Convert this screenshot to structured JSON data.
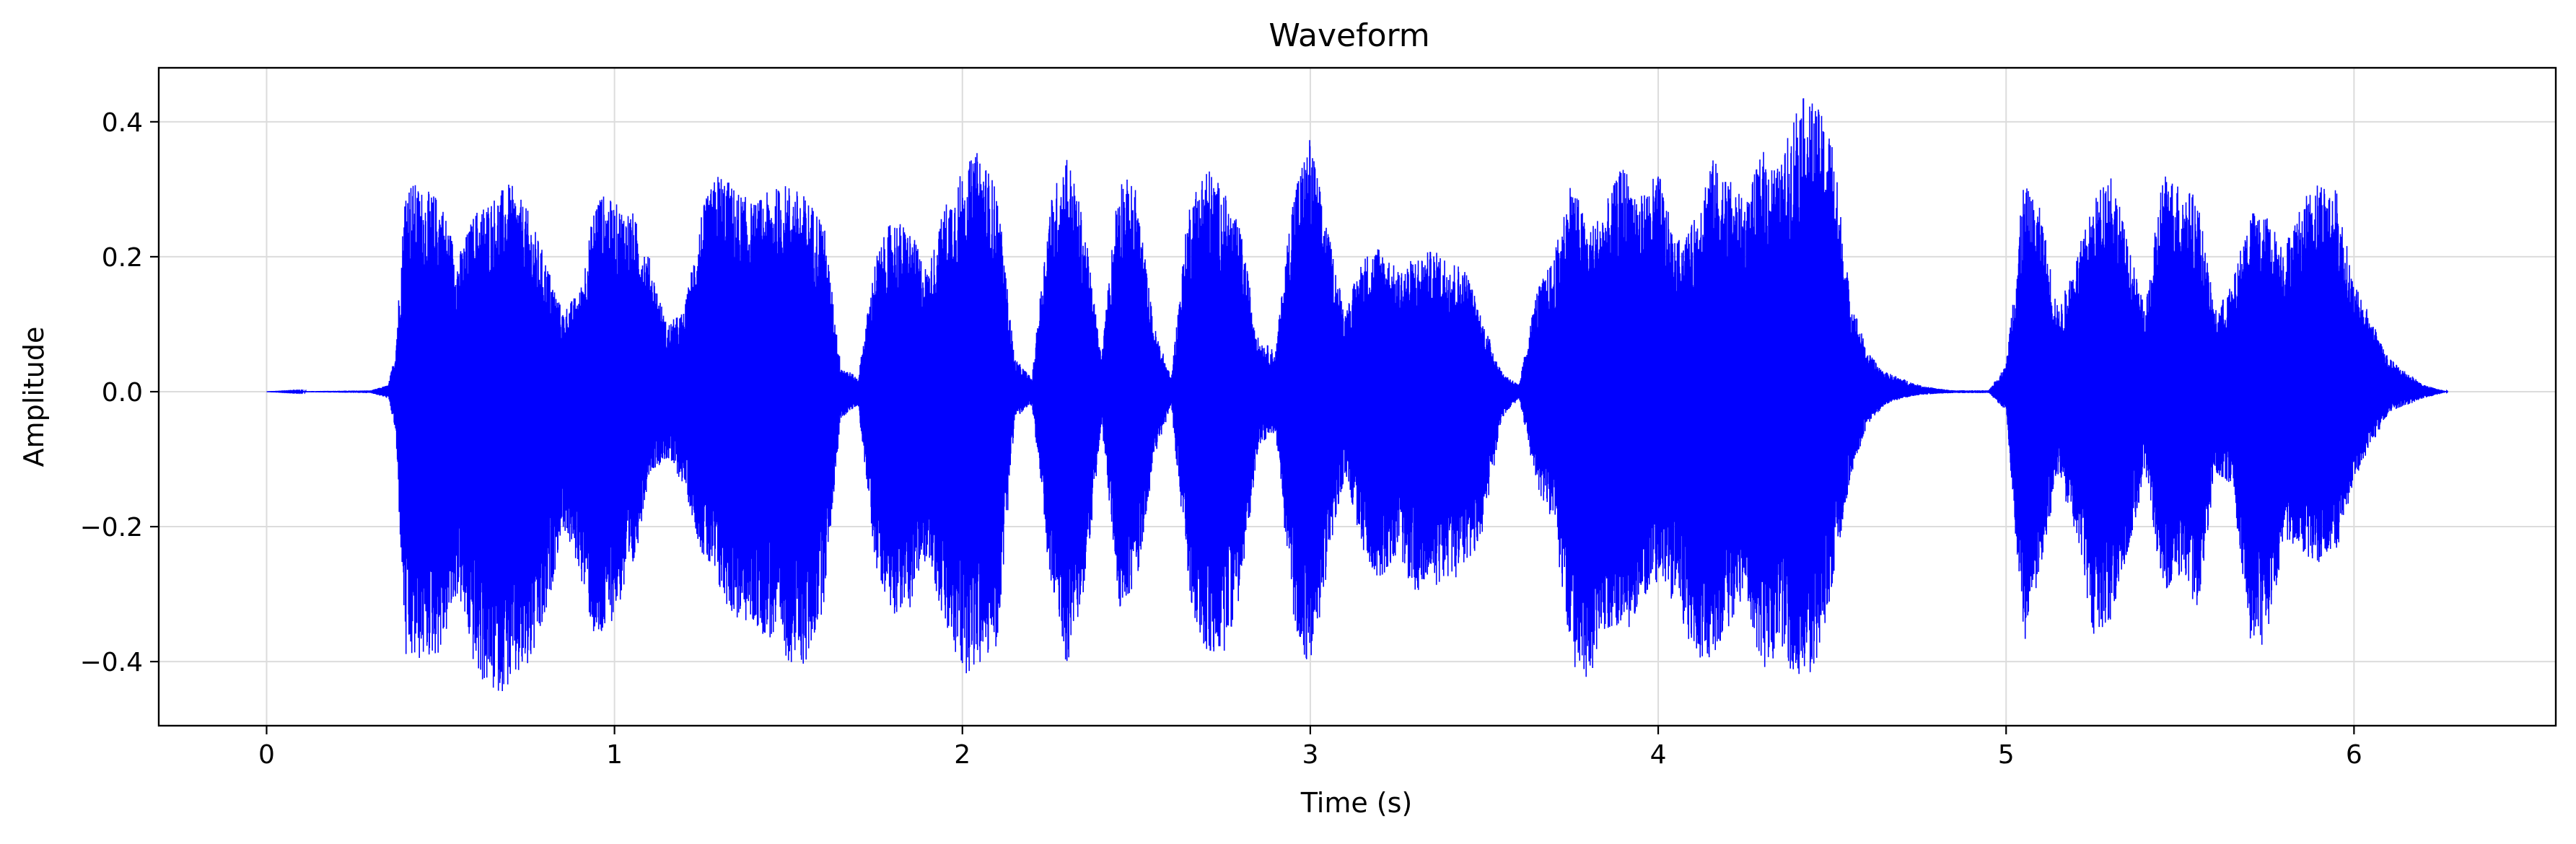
{
  "chart_data": {
    "type": "line",
    "title": "Waveform",
    "xlabel": "Time (s)",
    "ylabel": "Amplitude",
    "xlim": [
      -0.31,
      6.58
    ],
    "ylim": [
      -0.495,
      0.48
    ],
    "xticks": [
      0,
      1,
      2,
      3,
      4,
      5,
      6
    ],
    "xtick_labels": [
      "0",
      "1",
      "2",
      "3",
      "4",
      "5",
      "6"
    ],
    "yticks": [
      -0.4,
      -0.2,
      0.0,
      0.2,
      0.4
    ],
    "ytick_labels": [
      "−0.4",
      "−0.2",
      "0.0",
      "0.2",
      "0.4"
    ],
    "grid": true,
    "legend": "none",
    "duration_s": 6.27,
    "series": [
      {
        "color": "#0000ff",
        "envelope": {
          "t": [
            0.0,
            0.3,
            0.35,
            0.37,
            0.4,
            0.45,
            0.5,
            0.55,
            0.6,
            0.65,
            0.7,
            0.75,
            0.8,
            0.85,
            0.9,
            0.95,
            1.0,
            1.05,
            1.1,
            1.15,
            1.2,
            1.25,
            1.3,
            1.35,
            1.4,
            1.45,
            1.5,
            1.55,
            1.6,
            1.65,
            1.7,
            1.75,
            1.8,
            1.85,
            1.9,
            1.95,
            2.0,
            2.05,
            2.1,
            2.15,
            2.2,
            2.25,
            2.3,
            2.35,
            2.4,
            2.45,
            2.5,
            2.55,
            2.6,
            2.65,
            2.7,
            2.75,
            2.8,
            2.85,
            2.9,
            2.95,
            3.0,
            3.05,
            3.1,
            3.15,
            3.2,
            3.25,
            3.3,
            3.35,
            3.4,
            3.45,
            3.5,
            3.55,
            3.6,
            3.65,
            3.7,
            3.75,
            3.8,
            3.85,
            3.9,
            3.95,
            4.0,
            4.05,
            4.1,
            4.15,
            4.2,
            4.25,
            4.3,
            4.35,
            4.4,
            4.45,
            4.5,
            4.55,
            4.6,
            4.65,
            4.7,
            4.75,
            4.8,
            4.85,
            4.9,
            4.95,
            5.0,
            5.05,
            5.1,
            5.15,
            5.2,
            5.25,
            5.3,
            5.35,
            5.4,
            5.45,
            5.5,
            5.55,
            5.6,
            5.65,
            5.7,
            5.75,
            5.8,
            5.85,
            5.9,
            5.95,
            6.0,
            6.05,
            6.1,
            6.15,
            6.2,
            6.27
          ],
          "upper": [
            0.0,
            0.002,
            0.01,
            0.06,
            0.32,
            0.3,
            0.29,
            0.2,
            0.27,
            0.29,
            0.31,
            0.27,
            0.2,
            0.12,
            0.15,
            0.3,
            0.28,
            0.27,
            0.2,
            0.1,
            0.12,
            0.27,
            0.33,
            0.3,
            0.28,
            0.3,
            0.31,
            0.29,
            0.26,
            0.04,
            0.02,
            0.2,
            0.26,
            0.24,
            0.18,
            0.28,
            0.33,
            0.36,
            0.3,
            0.05,
            0.02,
            0.28,
            0.36,
            0.25,
            0.05,
            0.33,
            0.3,
            0.1,
            0.02,
            0.28,
            0.34,
            0.3,
            0.24,
            0.08,
            0.06,
            0.3,
            0.38,
            0.24,
            0.12,
            0.2,
            0.22,
            0.18,
            0.2,
            0.21,
            0.2,
            0.18,
            0.1,
            0.03,
            0.01,
            0.15,
            0.2,
            0.32,
            0.24,
            0.28,
            0.34,
            0.29,
            0.33,
            0.22,
            0.25,
            0.35,
            0.32,
            0.28,
            0.36,
            0.33,
            0.44,
            0.43,
            0.38,
            0.15,
            0.06,
            0.03,
            0.02,
            0.01,
            0.005,
            0.002,
            0.002,
            0.002,
            0.04,
            0.31,
            0.27,
            0.12,
            0.2,
            0.28,
            0.34,
            0.22,
            0.12,
            0.33,
            0.31,
            0.29,
            0.12,
            0.16,
            0.27,
            0.26,
            0.22,
            0.28,
            0.32,
            0.3,
            0.16,
            0.11,
            0.05,
            0.03,
            0.01,
            0.0
          ],
          "lower": [
            0.0,
            -0.002,
            -0.01,
            -0.06,
            -0.41,
            -0.4,
            -0.39,
            -0.3,
            -0.42,
            -0.45,
            -0.44,
            -0.42,
            -0.35,
            -0.2,
            -0.27,
            -0.39,
            -0.33,
            -0.28,
            -0.12,
            -0.1,
            -0.14,
            -0.24,
            -0.3,
            -0.34,
            -0.35,
            -0.37,
            -0.4,
            -0.41,
            -0.32,
            -0.04,
            -0.02,
            -0.26,
            -0.33,
            -0.32,
            -0.24,
            -0.36,
            -0.42,
            -0.41,
            -0.38,
            -0.04,
            -0.02,
            -0.28,
            -0.41,
            -0.3,
            -0.05,
            -0.32,
            -0.29,
            -0.1,
            -0.02,
            -0.3,
            -0.4,
            -0.39,
            -0.3,
            -0.08,
            -0.06,
            -0.34,
            -0.42,
            -0.26,
            -0.12,
            -0.24,
            -0.28,
            -0.24,
            -0.3,
            -0.29,
            -0.28,
            -0.27,
            -0.2,
            -0.04,
            -0.01,
            -0.14,
            -0.2,
            -0.4,
            -0.44,
            -0.35,
            -0.37,
            -0.31,
            -0.28,
            -0.32,
            -0.39,
            -0.4,
            -0.35,
            -0.3,
            -0.42,
            -0.38,
            -0.44,
            -0.41,
            -0.3,
            -0.13,
            -0.05,
            -0.02,
            -0.01,
            -0.005,
            -0.003,
            -0.002,
            -0.002,
            -0.002,
            -0.03,
            -0.38,
            -0.26,
            -0.12,
            -0.22,
            -0.36,
            -0.35,
            -0.24,
            -0.12,
            -0.3,
            -0.28,
            -0.33,
            -0.12,
            -0.14,
            -0.37,
            -0.38,
            -0.22,
            -0.24,
            -0.26,
            -0.24,
            -0.13,
            -0.08,
            -0.03,
            -0.02,
            -0.01,
            0.0
          ]
        }
      }
    ]
  }
}
